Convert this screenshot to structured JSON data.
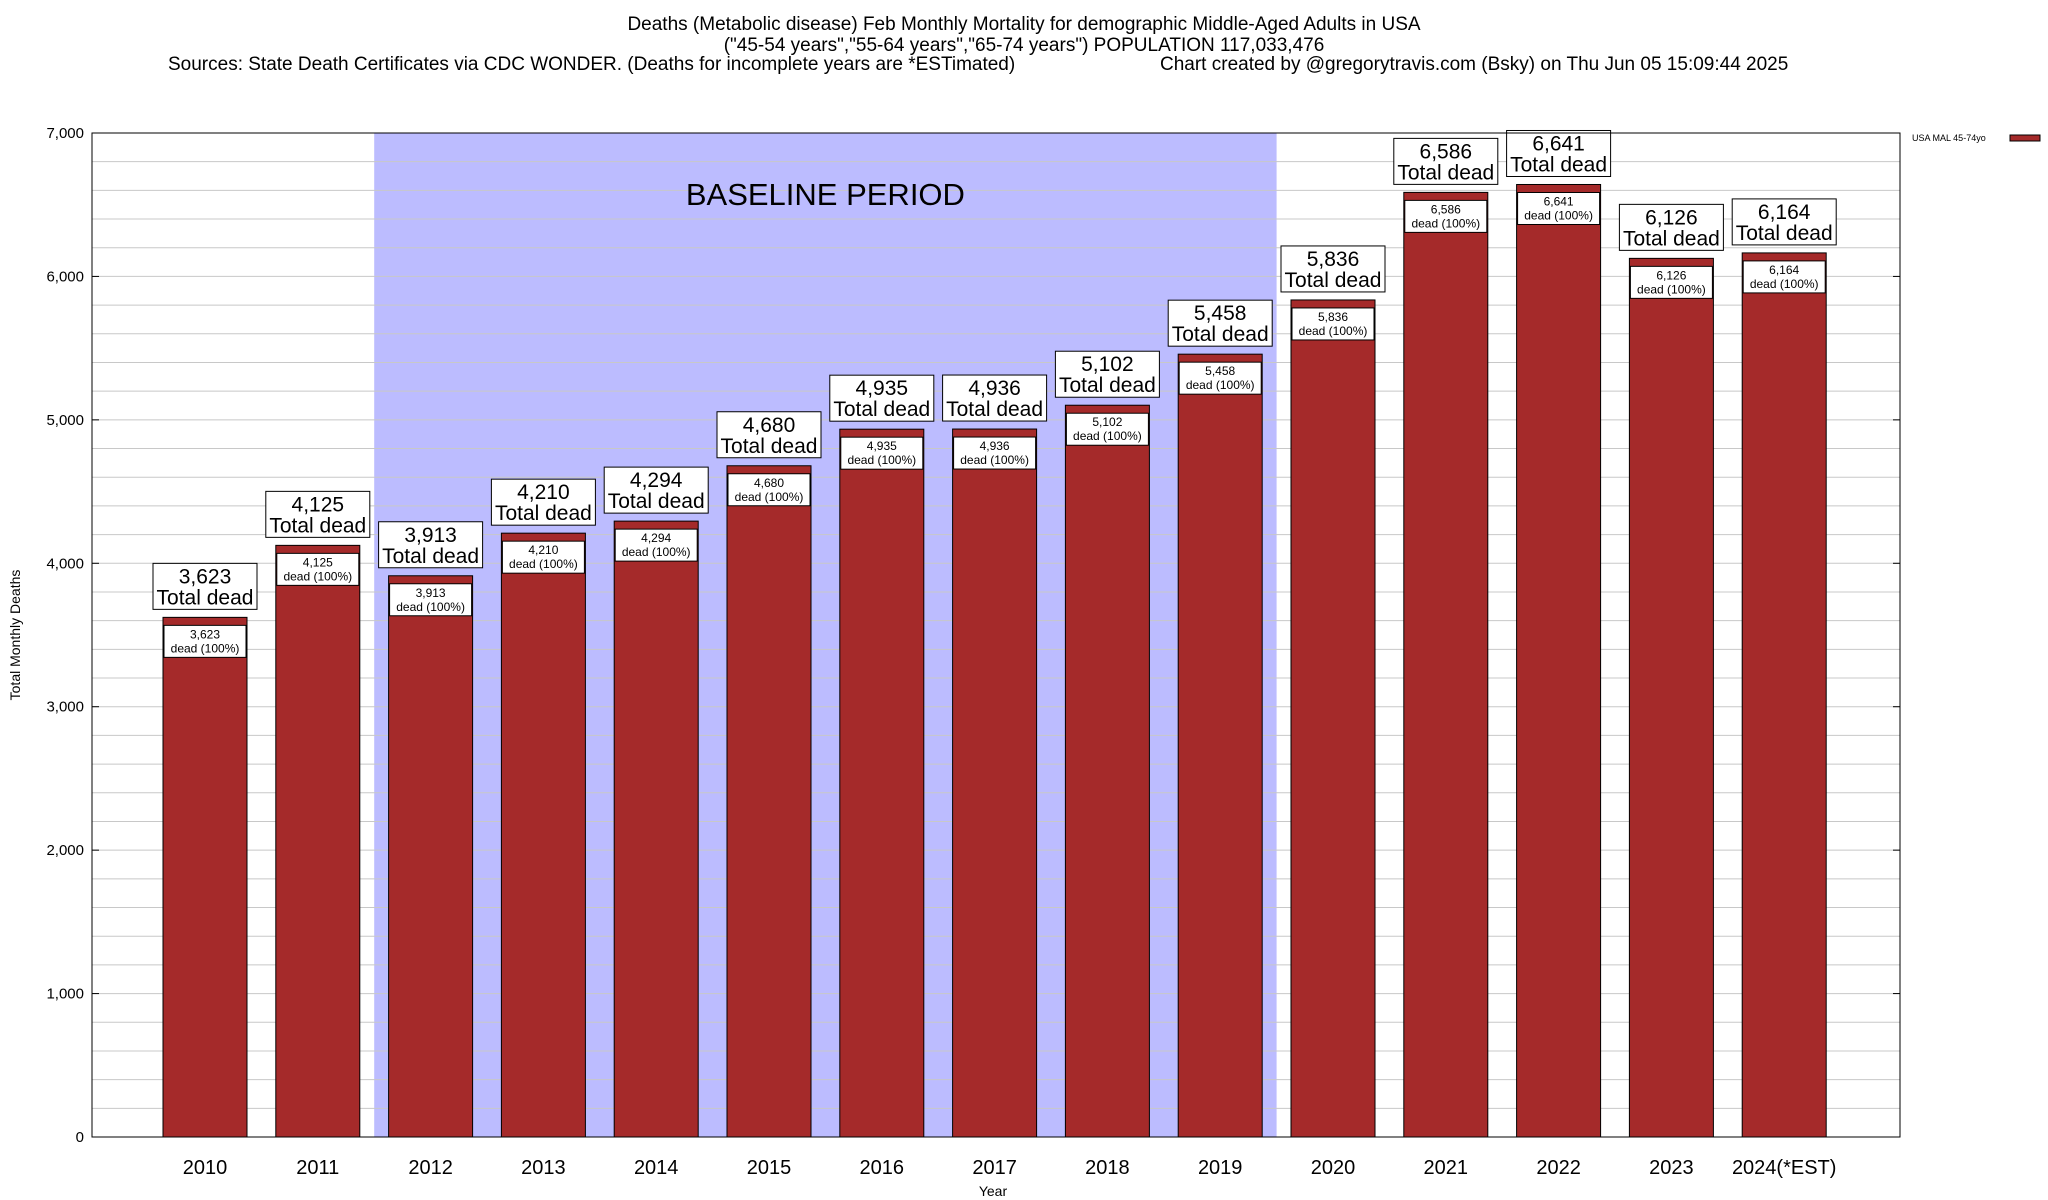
{
  "title": {
    "line1": "Deaths (Metabolic disease) Feb Monthly Mortality for demographic Middle-Aged Adults in USA",
    "line2": "(\"45-54 years\",\"55-64 years\",\"65-74 years\") POPULATION 117,033,476",
    "sources": "Sources: State Death Certificates via CDC WONDER. (Deaths for incomplete years are *ESTimated)",
    "credit": "Chart created by @gregorytravis.com (Bsky) on Thu Jun 05 15:09:44 2025"
  },
  "chart_data": {
    "type": "bar",
    "categories": [
      "2010",
      "2011",
      "2012",
      "2013",
      "2014",
      "2015",
      "2016",
      "2017",
      "2018",
      "2019",
      "2020",
      "2021",
      "2022",
      "2023",
      "2024(*EST)"
    ],
    "series": [
      {
        "name": "USA MAL 45-74yo",
        "values": [
          3623,
          4125,
          3913,
          4210,
          4294,
          4680,
          4935,
          4936,
          5102,
          5458,
          5836,
          6586,
          6641,
          6126,
          6164
        ]
      }
    ],
    "value_labels": [
      "3,623",
      "4,125",
      "3,913",
      "4,210",
      "4,294",
      "4,680",
      "4,935",
      "4,936",
      "5,102",
      "5,458",
      "5,836",
      "6,586",
      "6,641",
      "6,126",
      "6,164"
    ],
    "top_label_suffix": "Total dead",
    "inner_label_suffix": "dead (100%)",
    "xlabel": "Year",
    "ylabel": "Total Monthly Deaths",
    "ylim": [
      0,
      7000
    ],
    "yticks": [
      0,
      1000,
      2000,
      3000,
      4000,
      5000,
      6000,
      7000
    ],
    "ytick_labels": [
      "0",
      "1,000",
      "2,000",
      "3,000",
      "4,000",
      "5,000",
      "6,000",
      "7,000"
    ],
    "baseline_period": {
      "label": "BASELINE PERIOD",
      "start": "2012",
      "end": "2019"
    },
    "legend_position": "top-right",
    "grid": true,
    "colors": {
      "bar": "#a52a2a",
      "baseline": "#bcbcff",
      "grid": "#c8c8c8"
    }
  }
}
